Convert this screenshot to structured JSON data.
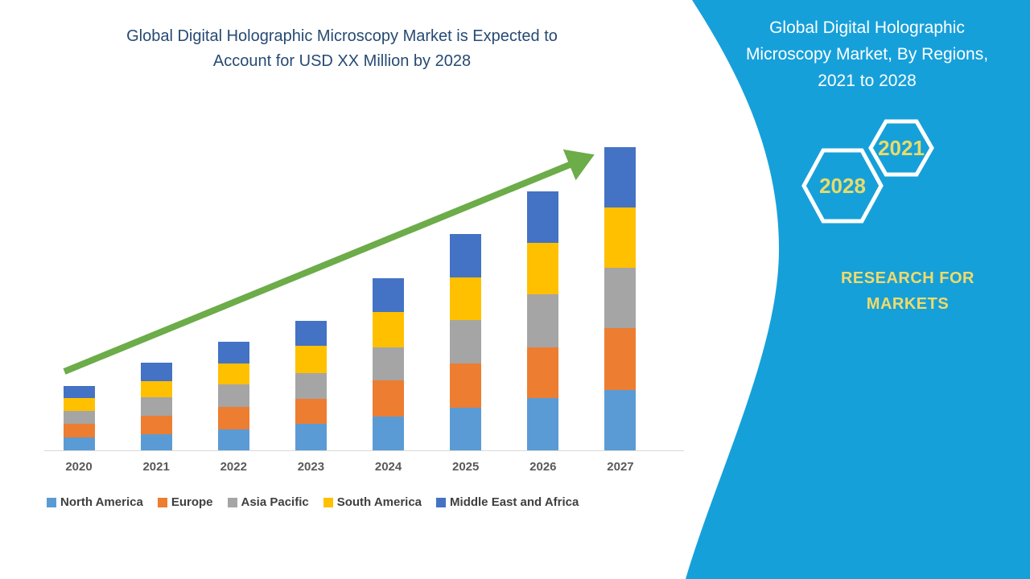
{
  "header": {
    "title_line1": "Global Digital Holographic Microscopy Market is Expected to",
    "title_line2": "Account for USD XX Million by 2028",
    "title_color": "#264A73"
  },
  "chart_data": {
    "type": "bar",
    "subtype": "stacked-column",
    "title": "Global Digital Holographic Microscopy Market is Expected to Account for USD XX Million by 2028",
    "unit_label": "USD XX Million",
    "categories": [
      "2020",
      "2021",
      "2022",
      "2023",
      "2024",
      "2025",
      "2026",
      "2027"
    ],
    "series": [
      {
        "name": "North America",
        "color": "#5B9BD5",
        "values": [
          16,
          20,
          26,
          33,
          42,
          53,
          65,
          75
        ]
      },
      {
        "name": "Europe",
        "color": "#ED7D31",
        "values": [
          17,
          23,
          28,
          31,
          45,
          55,
          63,
          77
        ]
      },
      {
        "name": "Asia Pacific",
        "color": "#A5A5A5",
        "values": [
          16,
          23,
          28,
          32,
          41,
          54,
          66,
          75
        ]
      },
      {
        "name": "South America",
        "color": "#FFC000",
        "values": [
          16,
          20,
          26,
          34,
          44,
          53,
          64,
          75
        ]
      },
      {
        "name": "Middle East and Africa",
        "color": "#4472C4",
        "values": [
          15,
          23,
          27,
          31,
          42,
          54,
          64,
          75
        ]
      }
    ],
    "totals": [
      80,
      109,
      135,
      161,
      214,
      269,
      322,
      377
    ],
    "value_axis_visible": false,
    "values_are_relative_estimates": true,
    "grid": false,
    "legend_position": "bottom",
    "trend_arrow": {
      "present": true,
      "color": "#6CAC49"
    },
    "axis_line_color": "#D9D9D9",
    "x_label_color": "#595959",
    "legend_text_color": "#3F3F3F"
  },
  "panel": {
    "title_lines": [
      "Global Digital Holographic",
      "Microscopy Market, By Regions,",
      "2021 to 2028"
    ],
    "hexagons": [
      {
        "label": "2028"
      },
      {
        "label": "2021"
      }
    ],
    "brand_line1": "RESEARCH FOR",
    "brand_line2": "MARKETS",
    "background_color": "#16A0DA",
    "accent_yellow": "#E8DC6A",
    "brand_yellow": "#F0DB6A",
    "hexagon_outline_color": "#FFFFFF"
  }
}
